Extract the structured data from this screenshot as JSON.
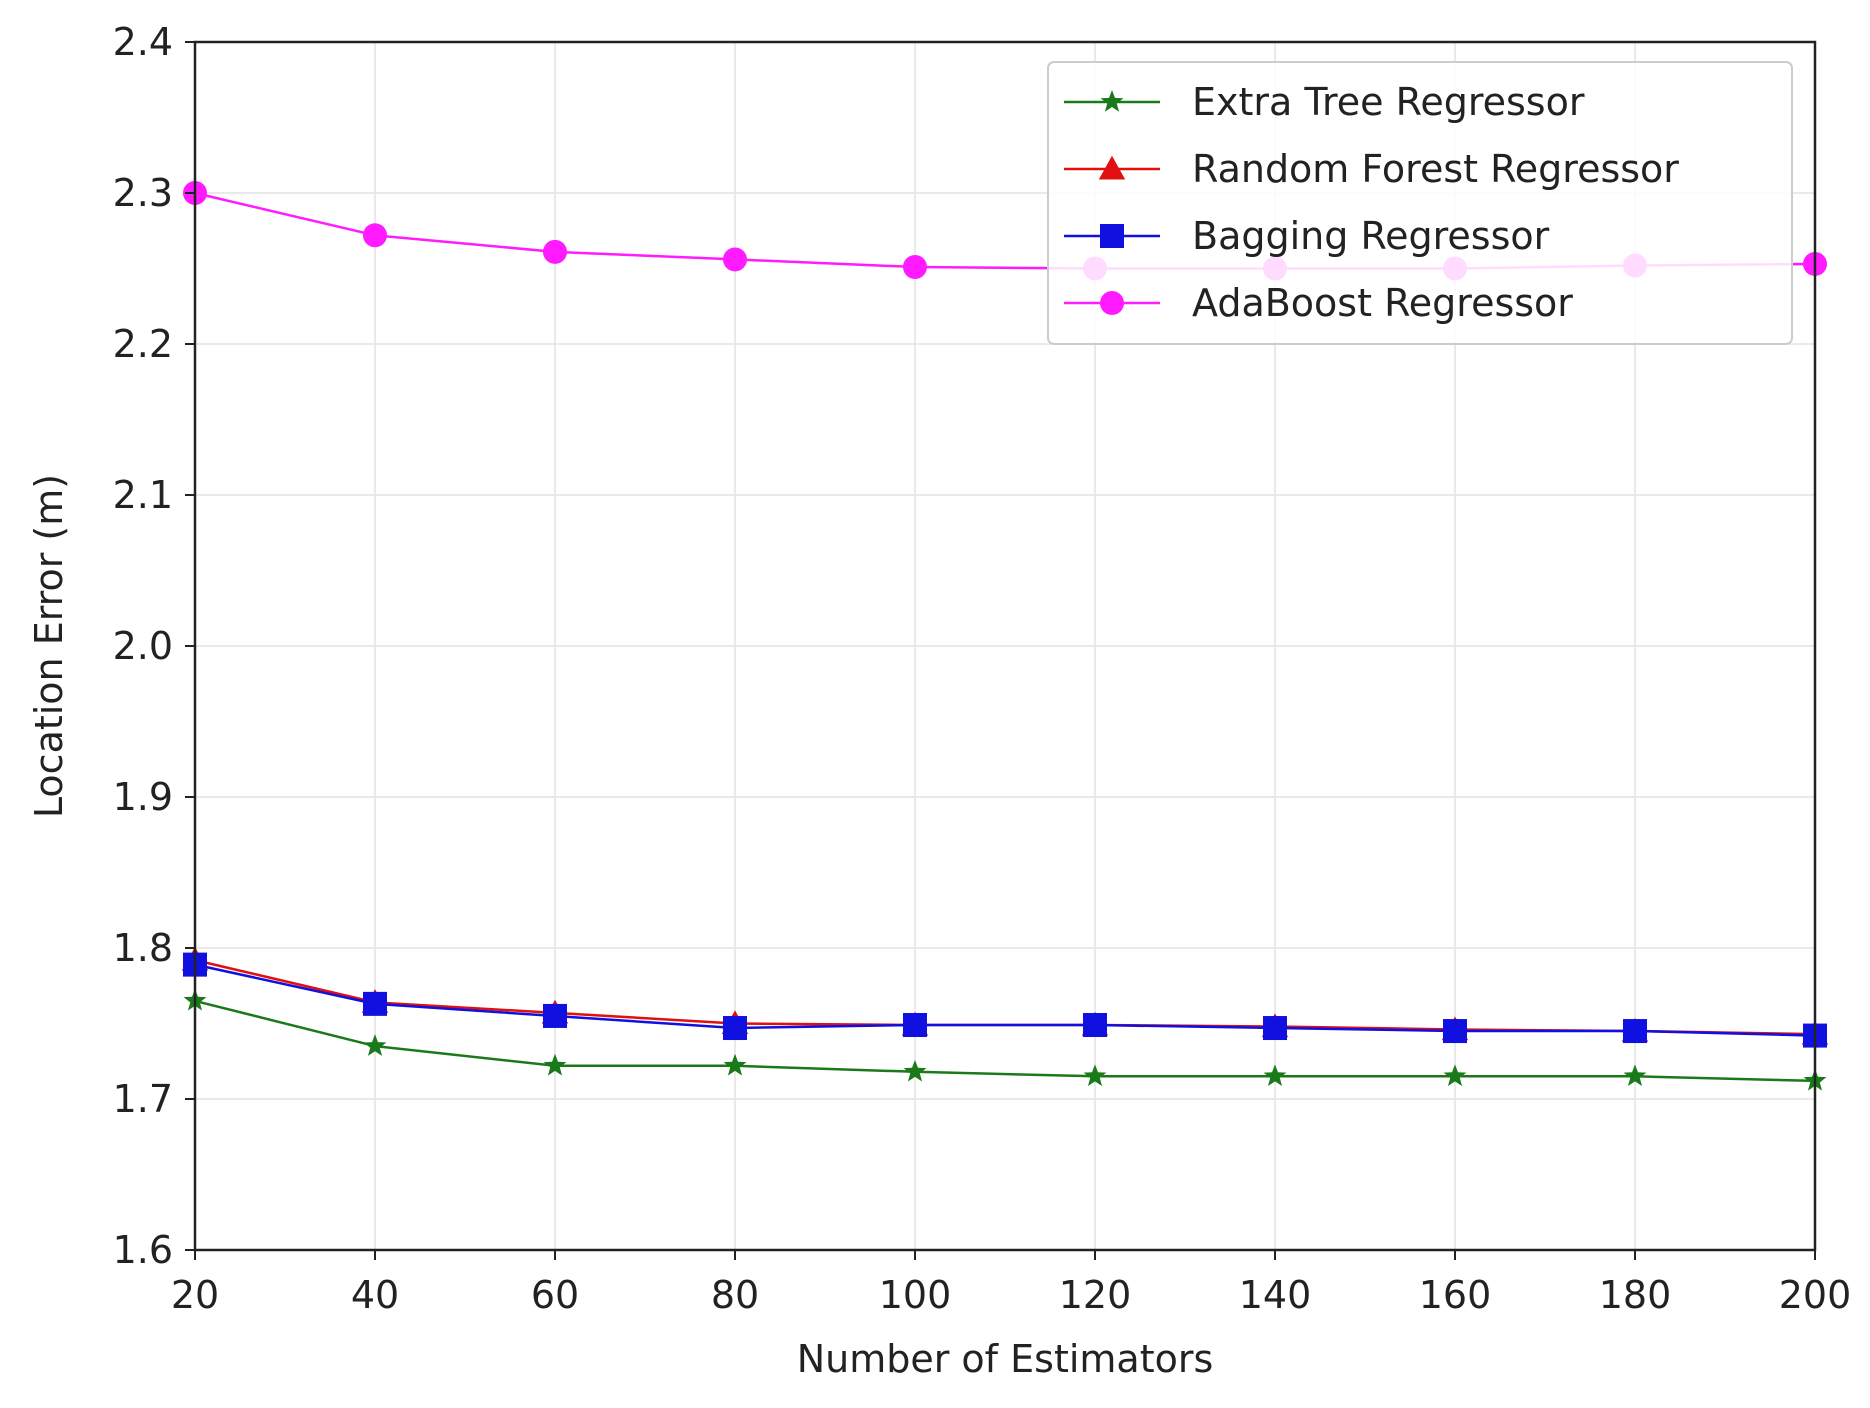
{
  "chart_data": {
    "type": "line",
    "title": "",
    "xlabel": "Number of Estimators",
    "ylabel": "Location Error (m)",
    "x": [
      20,
      40,
      60,
      80,
      100,
      120,
      140,
      160,
      180,
      200
    ],
    "xlim": [
      20,
      200
    ],
    "ylim": [
      1.6,
      2.4
    ],
    "x_ticks": [
      "20",
      "40",
      "60",
      "80",
      "100",
      "120",
      "140",
      "160",
      "180",
      "200"
    ],
    "y_ticks": [
      "1.6",
      "1.7",
      "1.8",
      "1.9",
      "2.0",
      "2.1",
      "2.2",
      "2.3",
      "2.4"
    ],
    "grid": true,
    "legend_position": "top-right",
    "series": [
      {
        "name": "Extra Tree Regressor",
        "color": "#1a7a1a",
        "marker": "star",
        "values": [
          1.765,
          1.735,
          1.722,
          1.722,
          1.718,
          1.715,
          1.715,
          1.715,
          1.715,
          1.712
        ]
      },
      {
        "name": "Random Forest Regressor",
        "color": "#e01010",
        "marker": "triangle",
        "values": [
          1.792,
          1.764,
          1.757,
          1.75,
          1.749,
          1.749,
          1.748,
          1.746,
          1.745,
          1.743
        ]
      },
      {
        "name": "Bagging Regressor",
        "color": "#1010e0",
        "marker": "square",
        "values": [
          1.789,
          1.763,
          1.755,
          1.747,
          1.749,
          1.749,
          1.747,
          1.745,
          1.745,
          1.742
        ]
      },
      {
        "name": "AdaBoost Regressor",
        "color": "#ff1aff",
        "marker": "circle",
        "values": [
          2.3,
          2.272,
          2.261,
          2.256,
          2.251,
          2.25,
          2.25,
          2.25,
          2.252,
          2.253
        ]
      }
    ]
  }
}
